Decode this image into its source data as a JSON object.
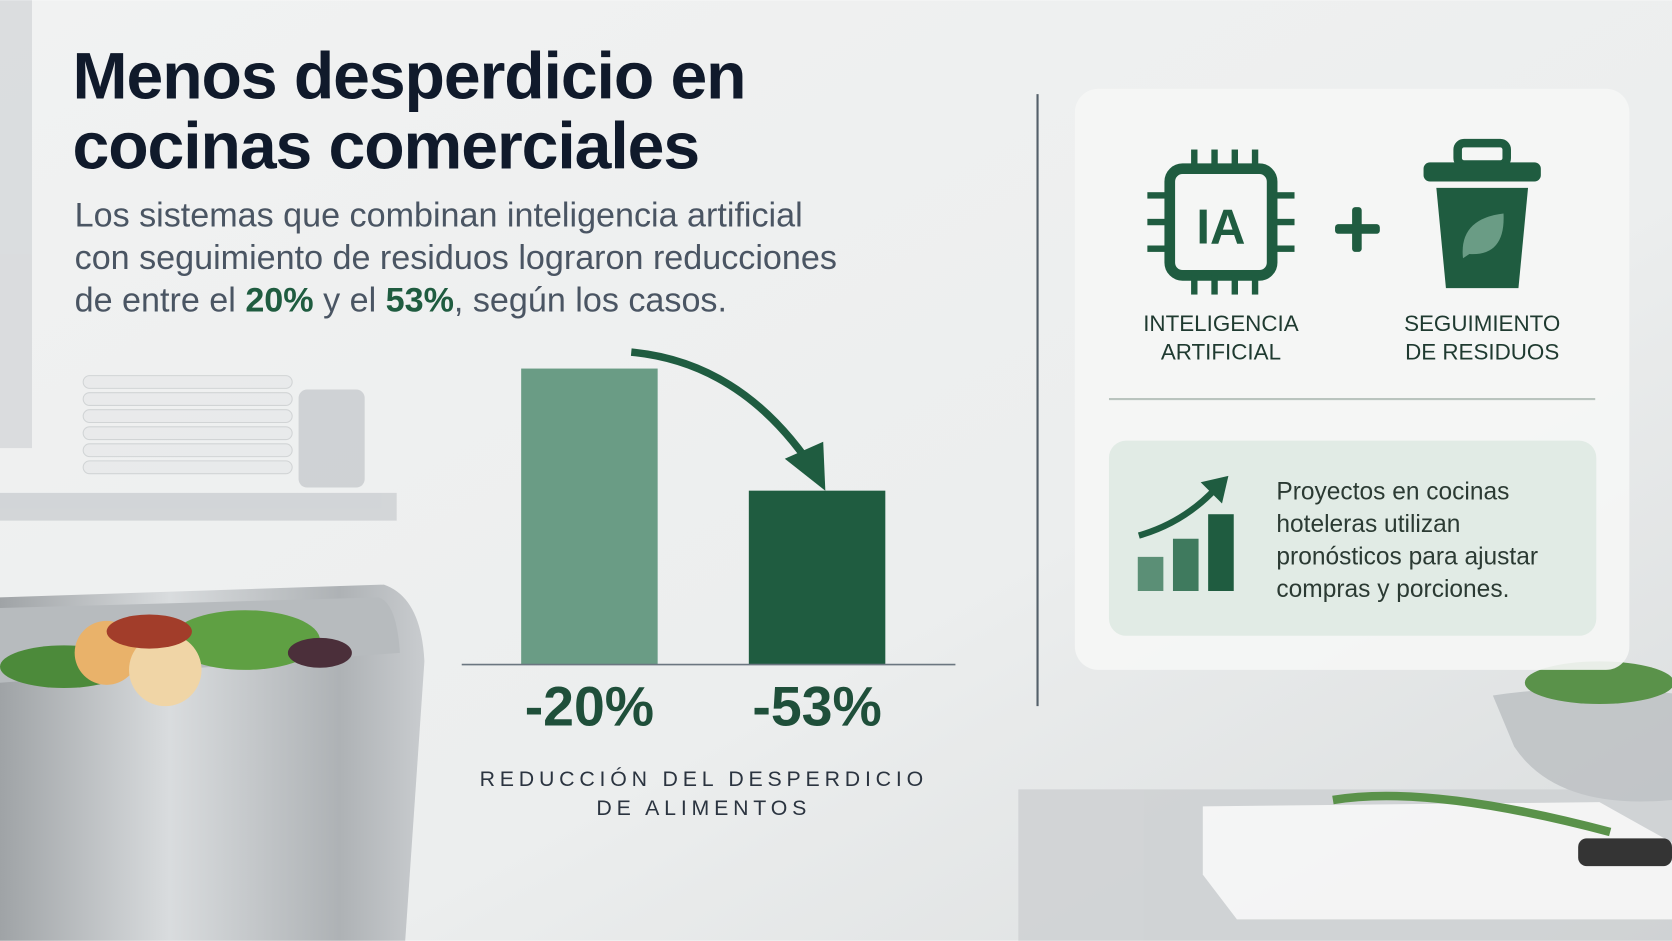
{
  "header": {
    "title": [
      "Menos desperdicio en",
      "cocinas comerciales"
    ],
    "lede": [
      [
        "Los sistemas que combinan inteligencia artificial"
      ],
      [
        "con seguimiento de residuos lograron reducciones"
      ],
      [
        "de entre el ",
        "20%",
        " y el ",
        "53%",
        ", según los casos."
      ]
    ]
  },
  "chart_data": {
    "type": "bar",
    "values": [
      -20,
      -53
    ],
    "value_labels": [
      "-20%",
      "-53%"
    ],
    "colors": [
      "#6a9c85",
      "#1f5c40"
    ],
    "ylim": [
      -100,
      0
    ],
    "xlabel": [
      "REDUCCIÓN DEL DESPERDICIO",
      "DE ALIMENTOS"
    ]
  },
  "card": {
    "icon_text": "IA",
    "items": [
      [
        "INTELIGENCIA",
        "ARTIFICIAL"
      ],
      [
        "SEGUIMIENTO",
        "DE RESIDUOS"
      ]
    ],
    "note": [
      "Proyectos en cocinas",
      "hoteleras utilizan",
      "pronósticos para ajustar",
      "compras y porciones."
    ]
  }
}
